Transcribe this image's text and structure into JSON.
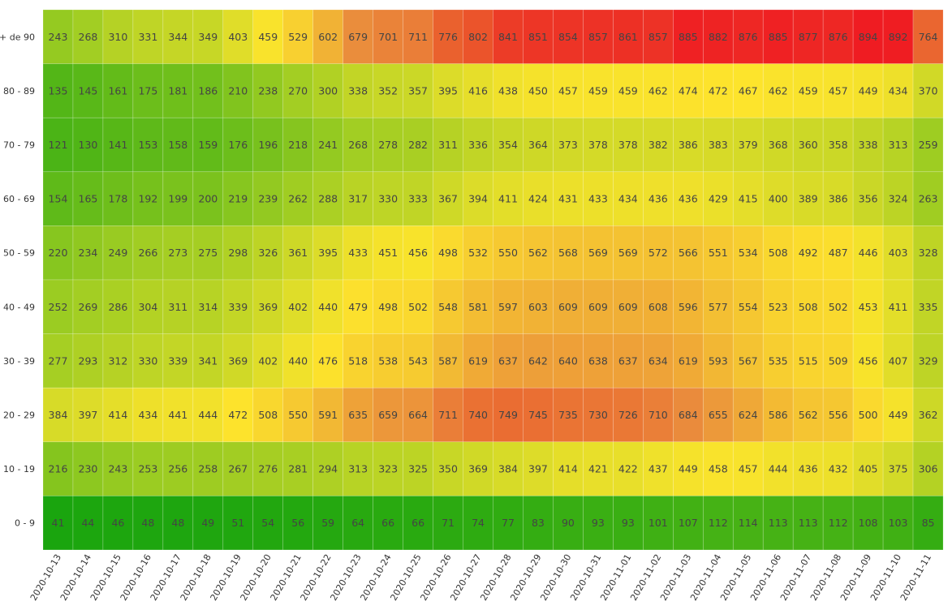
{
  "chart_data": {
    "type": "heatmap",
    "title": "",
    "xlabel": "",
    "ylabel": "",
    "x_categories": [
      "2020-10-13",
      "2020-10-14",
      "2020-10-15",
      "2020-10-16",
      "2020-10-17",
      "2020-10-18",
      "2020-10-19",
      "2020-10-20",
      "2020-10-21",
      "2020-10-22",
      "2020-10-23",
      "2020-10-24",
      "2020-10-25",
      "2020-10-26",
      "2020-10-27",
      "2020-10-28",
      "2020-10-29",
      "2020-10-30",
      "2020-10-31",
      "2020-11-01",
      "2020-11-02",
      "2020-11-03",
      "2020-11-04",
      "2020-11-05",
      "2020-11-06",
      "2020-11-07",
      "2020-11-08",
      "2020-11-09",
      "2020-11-10",
      "2020-11-11"
    ],
    "y_categories": [
      "+ de 90",
      "80 - 89",
      "70 - 79",
      "60 - 69",
      "50 - 59",
      "40 - 49",
      "30 - 39",
      "20 - 29",
      "10 - 19",
      "0 - 9"
    ],
    "values": [
      [
        243,
        268,
        310,
        331,
        344,
        349,
        403,
        459,
        529,
        602,
        679,
        701,
        711,
        776,
        802,
        841,
        851,
        854,
        857,
        861,
        857,
        885,
        882,
        876,
        885,
        877,
        876,
        894,
        892,
        764
      ],
      [
        135,
        145,
        161,
        175,
        181,
        186,
        210,
        238,
        270,
        300,
        338,
        352,
        357,
        395,
        416,
        438,
        450,
        457,
        459,
        459,
        462,
        474,
        472,
        467,
        462,
        459,
        457,
        449,
        434,
        370
      ],
      [
        121,
        130,
        141,
        153,
        158,
        159,
        176,
        196,
        218,
        241,
        268,
        278,
        282,
        311,
        336,
        354,
        364,
        373,
        378,
        378,
        382,
        386,
        383,
        379,
        368,
        360,
        358,
        338,
        313,
        259
      ],
      [
        154,
        165,
        178,
        192,
        199,
        200,
        219,
        239,
        262,
        288,
        317,
        330,
        333,
        367,
        394,
        411,
        424,
        431,
        433,
        434,
        436,
        436,
        429,
        415,
        400,
        389,
        386,
        356,
        324,
        263
      ],
      [
        220,
        234,
        249,
        266,
        273,
        275,
        298,
        326,
        361,
        395,
        433,
        451,
        456,
        498,
        532,
        550,
        562,
        568,
        569,
        569,
        572,
        566,
        551,
        534,
        508,
        492,
        487,
        446,
        403,
        328
      ],
      [
        252,
        269,
        286,
        304,
        311,
        314,
        339,
        369,
        402,
        440,
        479,
        498,
        502,
        548,
        581,
        597,
        603,
        609,
        609,
        609,
        608,
        596,
        577,
        554,
        523,
        508,
        502,
        453,
        411,
        335
      ],
      [
        277,
        293,
        312,
        330,
        339,
        341,
        369,
        402,
        440,
        476,
        518,
        538,
        543,
        587,
        619,
        637,
        642,
        640,
        638,
        637,
        634,
        619,
        593,
        567,
        535,
        515,
        509,
        456,
        407,
        329
      ],
      [
        384,
        397,
        414,
        434,
        441,
        444,
        472,
        508,
        550,
        591,
        635,
        659,
        664,
        711,
        740,
        749,
        745,
        735,
        730,
        726,
        710,
        684,
        655,
        624,
        586,
        562,
        556,
        500,
        449,
        362
      ],
      [
        216,
        230,
        243,
        253,
        256,
        258,
        267,
        276,
        281,
        294,
        313,
        323,
        325,
        350,
        369,
        384,
        397,
        414,
        421,
        422,
        437,
        449,
        458,
        457,
        444,
        436,
        432,
        405,
        375,
        306
      ],
      [
        41,
        44,
        46,
        48,
        48,
        49,
        51,
        54,
        56,
        59,
        64,
        66,
        66,
        71,
        74,
        77,
        83,
        90,
        93,
        93,
        101,
        107,
        112,
        114,
        113,
        113,
        112,
        108,
        103,
        85
      ]
    ],
    "colorscale": [
      {
        "stop": 0.0,
        "color": "#1aa50e"
      },
      {
        "stop": 0.25,
        "color": "#9ccc22"
      },
      {
        "stop": 0.5,
        "color": "#fde42c"
      },
      {
        "stop": 0.62,
        "color": "#f4c232"
      },
      {
        "stop": 0.75,
        "color": "#ea8c3c"
      },
      {
        "stop": 0.88,
        "color": "#ea5a2c"
      },
      {
        "stop": 1.0,
        "color": "#ef1c22"
      }
    ],
    "colorscale_range": [
      41,
      894
    ],
    "legend": "none",
    "grid": false
  }
}
